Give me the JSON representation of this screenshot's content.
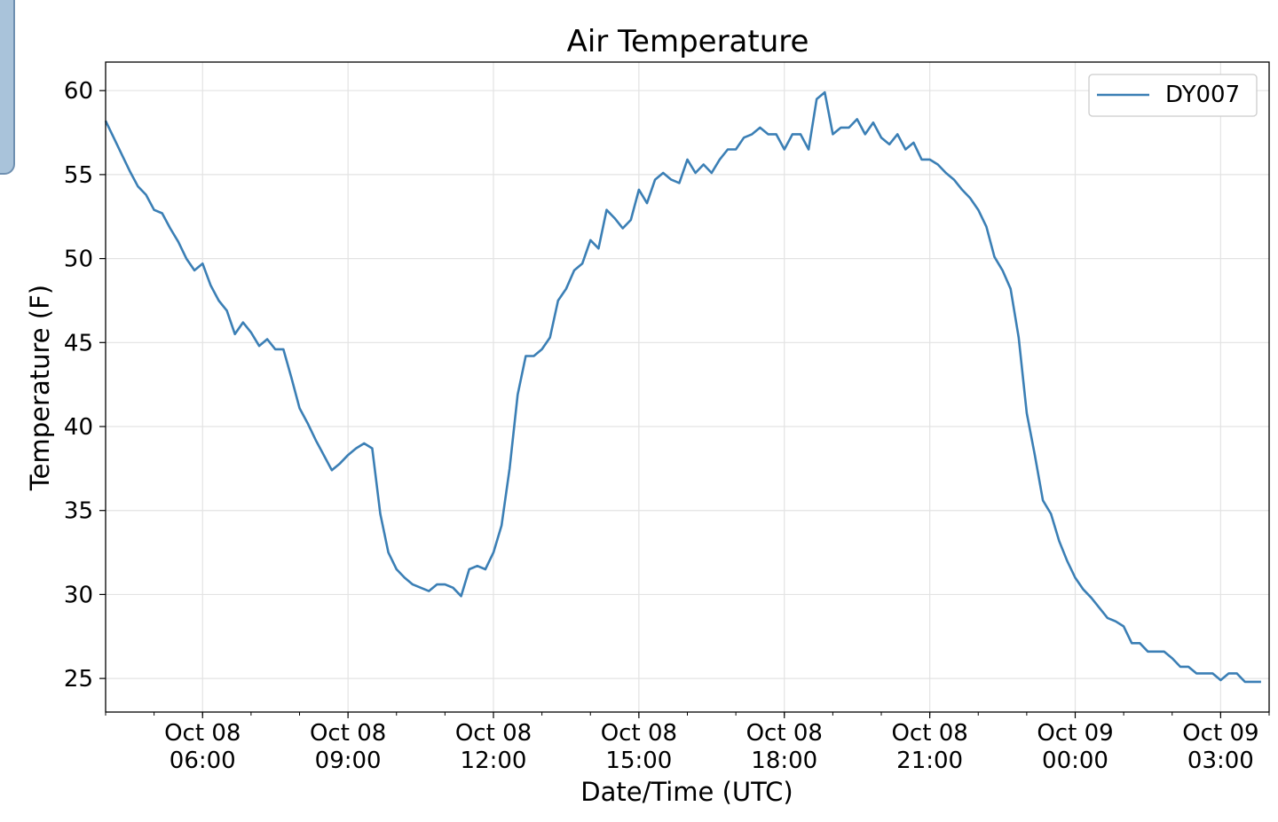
{
  "chart_data": {
    "type": "line",
    "title": "Air Temperature",
    "xlabel": "Date/Time (UTC)",
    "ylabel": "Temperature (F)",
    "legend": {
      "position": "top-right",
      "entries": [
        "DY007"
      ]
    },
    "grid": true,
    "x_range": [
      "2023-10-08T04:00",
      "2023-10-09T04:00"
    ],
    "ylim": [
      23.0,
      61.7
    ],
    "y_ticks": [
      25,
      30,
      35,
      40,
      45,
      50,
      55,
      60
    ],
    "x_ticks": [
      {
        "t": "2023-10-08T06:00",
        "line1": "Oct 08",
        "line2": "06:00"
      },
      {
        "t": "2023-10-08T09:00",
        "line1": "Oct 08",
        "line2": "09:00"
      },
      {
        "t": "2023-10-08T12:00",
        "line1": "Oct 08",
        "line2": "12:00"
      },
      {
        "t": "2023-10-08T15:00",
        "line1": "Oct 08",
        "line2": "15:00"
      },
      {
        "t": "2023-10-08T18:00",
        "line1": "Oct 08",
        "line2": "18:00"
      },
      {
        "t": "2023-10-08T21:00",
        "line1": "Oct 08",
        "line2": "21:00"
      },
      {
        "t": "2023-10-09T00:00",
        "line1": "Oct 09",
        "line2": "00:00"
      },
      {
        "t": "2023-10-09T03:00",
        "line1": "Oct 09",
        "line2": "03:00"
      }
    ],
    "series": [
      {
        "name": "DY007",
        "color": "#3b7fb5",
        "points": [
          [
            "2023-10-08T04:00",
            58.2
          ],
          [
            "2023-10-08T04:10",
            57.2
          ],
          [
            "2023-10-08T04:20",
            56.2
          ],
          [
            "2023-10-08T04:30",
            55.2
          ],
          [
            "2023-10-08T04:40",
            54.3
          ],
          [
            "2023-10-08T04:50",
            53.8
          ],
          [
            "2023-10-08T05:00",
            52.9
          ],
          [
            "2023-10-08T05:10",
            52.7
          ],
          [
            "2023-10-08T05:20",
            51.8
          ],
          [
            "2023-10-08T05:30",
            51.0
          ],
          [
            "2023-10-08T05:40",
            50.0
          ],
          [
            "2023-10-08T05:50",
            49.3
          ],
          [
            "2023-10-08T06:00",
            49.7
          ],
          [
            "2023-10-08T06:10",
            48.4
          ],
          [
            "2023-10-08T06:20",
            47.5
          ],
          [
            "2023-10-08T06:30",
            46.9
          ],
          [
            "2023-10-08T06:40",
            45.5
          ],
          [
            "2023-10-08T06:50",
            46.2
          ],
          [
            "2023-10-08T07:00",
            45.6
          ],
          [
            "2023-10-08T07:10",
            44.8
          ],
          [
            "2023-10-08T07:20",
            45.2
          ],
          [
            "2023-10-08T07:30",
            44.6
          ],
          [
            "2023-10-08T07:40",
            44.6
          ],
          [
            "2023-10-08T07:50",
            42.9
          ],
          [
            "2023-10-08T08:00",
            41.1
          ],
          [
            "2023-10-08T08:10",
            40.2
          ],
          [
            "2023-10-08T08:20",
            39.2
          ],
          [
            "2023-10-08T08:30",
            38.3
          ],
          [
            "2023-10-08T08:40",
            37.4
          ],
          [
            "2023-10-08T08:50",
            37.8
          ],
          [
            "2023-10-08T09:00",
            38.3
          ],
          [
            "2023-10-08T09:10",
            38.7
          ],
          [
            "2023-10-08T09:20",
            39.0
          ],
          [
            "2023-10-08T09:30",
            38.7
          ],
          [
            "2023-10-08T09:40",
            34.8
          ],
          [
            "2023-10-08T09:50",
            32.5
          ],
          [
            "2023-10-08T10:00",
            31.5
          ],
          [
            "2023-10-08T10:10",
            31.0
          ],
          [
            "2023-10-08T10:20",
            30.6
          ],
          [
            "2023-10-08T10:30",
            30.4
          ],
          [
            "2023-10-08T10:40",
            30.2
          ],
          [
            "2023-10-08T10:50",
            30.6
          ],
          [
            "2023-10-08T11:00",
            30.6
          ],
          [
            "2023-10-08T11:10",
            30.4
          ],
          [
            "2023-10-08T11:20",
            29.9
          ],
          [
            "2023-10-08T11:30",
            31.5
          ],
          [
            "2023-10-08T11:40",
            31.7
          ],
          [
            "2023-10-08T11:50",
            31.5
          ],
          [
            "2023-10-08T12:00",
            32.5
          ],
          [
            "2023-10-08T12:10",
            34.1
          ],
          [
            "2023-10-08T12:20",
            37.5
          ],
          [
            "2023-10-08T12:30",
            41.9
          ],
          [
            "2023-10-08T12:40",
            44.2
          ],
          [
            "2023-10-08T12:50",
            44.2
          ],
          [
            "2023-10-08T13:00",
            44.6
          ],
          [
            "2023-10-08T13:10",
            45.3
          ],
          [
            "2023-10-08T13:20",
            47.5
          ],
          [
            "2023-10-08T13:30",
            48.2
          ],
          [
            "2023-10-08T13:40",
            49.3
          ],
          [
            "2023-10-08T13:50",
            49.7
          ],
          [
            "2023-10-08T14:00",
            51.1
          ],
          [
            "2023-10-08T14:10",
            50.6
          ],
          [
            "2023-10-08T14:20",
            52.9
          ],
          [
            "2023-10-08T14:30",
            52.4
          ],
          [
            "2023-10-08T14:40",
            51.8
          ],
          [
            "2023-10-08T14:50",
            52.3
          ],
          [
            "2023-10-08T15:00",
            54.1
          ],
          [
            "2023-10-08T15:10",
            53.3
          ],
          [
            "2023-10-08T15:20",
            54.7
          ],
          [
            "2023-10-08T15:30",
            55.1
          ],
          [
            "2023-10-08T15:40",
            54.7
          ],
          [
            "2023-10-08T15:50",
            54.5
          ],
          [
            "2023-10-08T16:00",
            55.9
          ],
          [
            "2023-10-08T16:10",
            55.1
          ],
          [
            "2023-10-08T16:20",
            55.6
          ],
          [
            "2023-10-08T16:30",
            55.1
          ],
          [
            "2023-10-08T16:40",
            55.9
          ],
          [
            "2023-10-08T16:50",
            56.5
          ],
          [
            "2023-10-08T17:00",
            56.5
          ],
          [
            "2023-10-08T17:10",
            57.2
          ],
          [
            "2023-10-08T17:20",
            57.4
          ],
          [
            "2023-10-08T17:30",
            57.8
          ],
          [
            "2023-10-08T17:40",
            57.4
          ],
          [
            "2023-10-08T17:50",
            57.4
          ],
          [
            "2023-10-08T18:00",
            56.5
          ],
          [
            "2023-10-08T18:10",
            57.4
          ],
          [
            "2023-10-08T18:20",
            57.4
          ],
          [
            "2023-10-08T18:30",
            56.5
          ],
          [
            "2023-10-08T18:40",
            59.5
          ],
          [
            "2023-10-08T18:50",
            59.9
          ],
          [
            "2023-10-08T19:00",
            57.4
          ],
          [
            "2023-10-08T19:10",
            57.8
          ],
          [
            "2023-10-08T19:20",
            57.8
          ],
          [
            "2023-10-08T19:30",
            58.3
          ],
          [
            "2023-10-08T19:40",
            57.4
          ],
          [
            "2023-10-08T19:50",
            58.1
          ],
          [
            "2023-10-08T20:00",
            57.2
          ],
          [
            "2023-10-08T20:10",
            56.8
          ],
          [
            "2023-10-08T20:20",
            57.4
          ],
          [
            "2023-10-08T20:30",
            56.5
          ],
          [
            "2023-10-08T20:40",
            56.9
          ],
          [
            "2023-10-08T20:50",
            55.9
          ],
          [
            "2023-10-08T21:00",
            55.9
          ],
          [
            "2023-10-08T21:10",
            55.6
          ],
          [
            "2023-10-08T21:20",
            55.1
          ],
          [
            "2023-10-08T21:30",
            54.7
          ],
          [
            "2023-10-08T21:40",
            54.1
          ],
          [
            "2023-10-08T21:50",
            53.6
          ],
          [
            "2023-10-08T22:00",
            52.9
          ],
          [
            "2023-10-08T22:10",
            51.9
          ],
          [
            "2023-10-08T22:20",
            50.1
          ],
          [
            "2023-10-08T22:30",
            49.3
          ],
          [
            "2023-10-08T22:40",
            48.2
          ],
          [
            "2023-10-08T22:50",
            45.3
          ],
          [
            "2023-10-08T23:00",
            40.8
          ],
          [
            "2023-10-08T23:10",
            38.3
          ],
          [
            "2023-10-08T23:20",
            35.6
          ],
          [
            "2023-10-08T23:30",
            34.8
          ],
          [
            "2023-10-08T23:40",
            33.2
          ],
          [
            "2023-10-08T23:50",
            32.0
          ],
          [
            "2023-10-09T00:00",
            31.0
          ],
          [
            "2023-10-09T00:10",
            30.3
          ],
          [
            "2023-10-09T00:20",
            29.8
          ],
          [
            "2023-10-09T00:30",
            29.2
          ],
          [
            "2023-10-09T00:40",
            28.6
          ],
          [
            "2023-10-09T00:50",
            28.4
          ],
          [
            "2023-10-09T01:00",
            28.1
          ],
          [
            "2023-10-09T01:10",
            27.1
          ],
          [
            "2023-10-09T01:20",
            27.1
          ],
          [
            "2023-10-09T01:30",
            26.6
          ],
          [
            "2023-10-09T01:40",
            26.6
          ],
          [
            "2023-10-09T01:50",
            26.6
          ],
          [
            "2023-10-09T02:00",
            26.2
          ],
          [
            "2023-10-09T02:10",
            25.7
          ],
          [
            "2023-10-09T02:20",
            25.7
          ],
          [
            "2023-10-09T02:30",
            25.3
          ],
          [
            "2023-10-09T02:40",
            25.3
          ],
          [
            "2023-10-09T02:50",
            25.3
          ],
          [
            "2023-10-09T03:00",
            24.9
          ],
          [
            "2023-10-09T03:10",
            25.3
          ],
          [
            "2023-10-09T03:20",
            25.3
          ],
          [
            "2023-10-09T03:30",
            24.8
          ],
          [
            "2023-10-09T03:40",
            24.8
          ],
          [
            "2023-10-09T03:50",
            24.8
          ]
        ]
      }
    ]
  }
}
